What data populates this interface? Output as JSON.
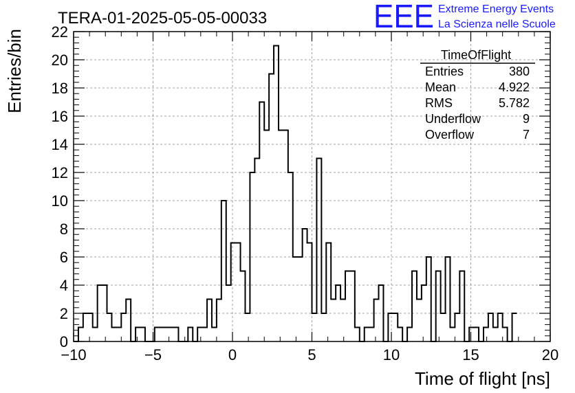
{
  "chart_data": {
    "type": "bar",
    "title": "TERA-01-2025-05-05-00033",
    "xlabel": "Time of flight [ns]",
    "ylabel": "Entries/bin",
    "xlim": [
      -10,
      20
    ],
    "ylim": [
      0,
      22
    ],
    "x_ticks": [
      "−10",
      "−5",
      "0",
      "5",
      "10",
      "15",
      "20"
    ],
    "y_ticks": [
      "0",
      "2",
      "4",
      "6",
      "8",
      "10",
      "12",
      "14",
      "16",
      "18",
      "20",
      "22"
    ],
    "grid": true,
    "bin_width": 0.3,
    "bin_start": -10,
    "values": [
      0,
      1,
      2,
      2,
      1,
      4,
      4,
      2,
      1,
      1,
      2,
      3,
      0,
      1,
      1,
      0,
      0,
      1,
      1,
      1,
      1,
      1,
      0,
      0,
      1,
      0,
      1,
      1,
      3,
      1,
      3,
      10,
      4,
      7,
      7,
      5,
      2,
      12,
      13,
      17,
      15,
      19,
      21,
      15,
      15,
      12,
      6,
      6,
      8,
      7,
      2,
      13,
      2,
      7,
      3,
      4,
      3,
      5,
      5,
      1,
      0,
      1,
      1,
      3,
      4,
      0,
      2,
      2,
      1,
      0,
      1,
      5,
      3,
      4,
      6,
      0,
      5,
      2,
      6,
      1,
      2,
      5,
      0,
      1,
      1,
      0,
      1,
      2,
      1,
      2,
      1,
      0,
      2
    ],
    "legend": {
      "title": "TimeOfFlight",
      "rows": [
        {
          "label": "Entries",
          "value": "380"
        },
        {
          "label": "Mean",
          "value": "4.922"
        },
        {
          "label": "RMS",
          "value": "5.782"
        },
        {
          "label": "Underflow",
          "value": "9"
        },
        {
          "label": "Overflow",
          "value": "7"
        }
      ]
    },
    "logo": {
      "mark": "EEE",
      "line1": "Extreme Energy Events",
      "line2": "La Scienza nelle Scuole"
    },
    "colors": {
      "line": "#000000",
      "grid": "#a0a0a0",
      "logo": "#1a1aff"
    }
  }
}
